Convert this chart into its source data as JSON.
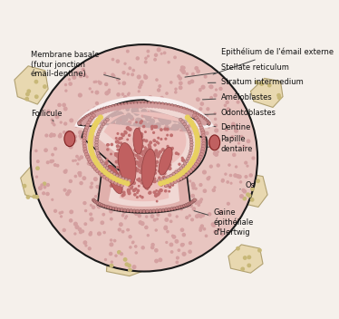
{
  "bg_color": "#f5f0eb",
  "colors": {
    "outer_follicle": "#e8c5c0",
    "follicle_dots": "#d4a0a0",
    "stellate_bg": "#f8f0f0",
    "stellate_dots": "#c8a8a8",
    "tooth_fill": "#e0b0ac",
    "inner_fill": "#f0d8d4",
    "yellow_dots": "#e8d060",
    "papille_fill": "#ecc0bc",
    "papille_dots": "#c07070",
    "vessel_fill": "#c06060",
    "vessel_edge": "#904040",
    "outer_epi": "#c08080",
    "ameloblast": "#d09090",
    "odontoblast": "#d09898",
    "stratum_dot": "#d4a0a0",
    "hertwig": "#c08080",
    "knot": "#c06060",
    "bone_color": "#e8d8b0",
    "bone_edge": "#b0a070",
    "bone_dot": "#c8b878",
    "black_border": "#1a1a1a",
    "text_color": "#111111",
    "arrow_color": "#444444"
  },
  "labels": {
    "membrane_basale": "Membrane basale\n(futur jonction\némail-dentine)",
    "follicule": "Follicule",
    "epithelium": "Epithélium de l'émail externe",
    "stellate": "Stellate reticulum",
    "stratum": "Stratum intermedium",
    "ameloblastes": "Améloblastes",
    "odontoblastes": "Odontoblastes",
    "dentine": "Dentine",
    "papille": "Papille\ndentaire",
    "os": "Os",
    "gaine": "Gaine\népithéliale\nd'Hertwig"
  }
}
